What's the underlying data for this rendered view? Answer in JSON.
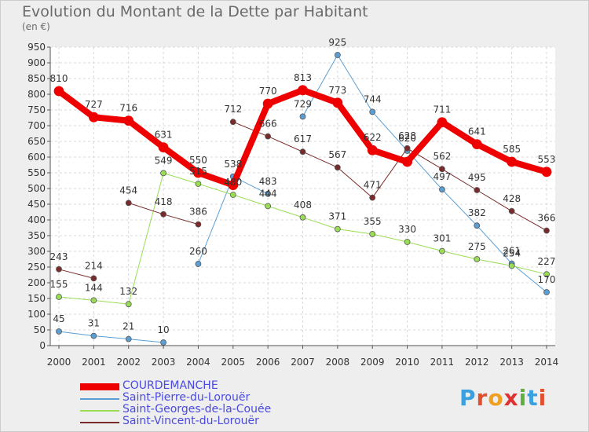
{
  "title": "Evolution du Montant de la Dette par Habitant",
  "unit": "(en €)",
  "logo": {
    "text": "Proxiti",
    "letters": [
      "P",
      "r",
      "o",
      "x",
      "i",
      "t",
      "i"
    ],
    "colors": [
      "#3aa0e0",
      "#e05030",
      "#f0a020",
      "#e03030",
      "#60b040",
      "#3aa0e0",
      "#e05030"
    ]
  },
  "chart_data": {
    "type": "line",
    "title": "Evolution du Montant de la Dette par Habitant",
    "ylabel": "(en €)",
    "x": [
      "2000",
      "2001",
      "2002",
      "2003",
      "2004",
      "2005",
      "2006",
      "2007",
      "2008",
      "2009",
      "2010",
      "2011",
      "2012",
      "2013",
      "2014"
    ],
    "ylim": [
      0,
      950
    ],
    "yticks": [
      0,
      50,
      100,
      150,
      200,
      250,
      300,
      350,
      400,
      450,
      500,
      550,
      600,
      650,
      700,
      750,
      800,
      850,
      900,
      950
    ],
    "grid": true,
    "legend_position": "bottom-left",
    "series": [
      {
        "name": "COURDEMANCHE",
        "color": "#ee0000",
        "width": 8,
        "values": [
          810,
          727,
          716,
          631,
          550,
          511,
          770,
          813,
          773,
          622,
          585,
          711,
          641,
          585,
          553
        ],
        "labels": [
          "810",
          "727",
          "716",
          "631",
          "550",
          "",
          "770",
          "813",
          "773",
          "622",
          "",
          "711",
          "641",
          "585",
          "553"
        ]
      },
      {
        "name": "Saint-Pierre-du-Lorouër",
        "color": "#5a9fd4",
        "width": 1,
        "segments": [
          [
            0,
            3
          ],
          [
            4,
            6
          ],
          [
            7,
            14
          ]
        ],
        "values": [
          45,
          31,
          21,
          10,
          260,
          538,
          483,
          729,
          925,
          744,
          620,
          497,
          382,
          261,
          170
        ],
        "labels": [
          "45",
          "31",
          "21",
          "10",
          "260",
          "538",
          "483",
          "729",
          "925",
          "744",
          "620",
          "497",
          "382",
          "261",
          "170"
        ]
      },
      {
        "name": "Saint-Georges-de-la-Couée",
        "color": "#99dd55",
        "width": 1,
        "segments": [
          [
            0,
            14
          ]
        ],
        "values": [
          155,
          144,
          132,
          549,
          515,
          480,
          444,
          408,
          371,
          355,
          330,
          301,
          275,
          254,
          227
        ],
        "labels": [
          "155",
          "144",
          "132",
          "549",
          "515",
          "480",
          "444",
          "408",
          "371",
          "355",
          "330",
          "301",
          "275",
          "254",
          "227"
        ]
      },
      {
        "name": "Saint-Vincent-du-Lorouër",
        "color": "#7a2a2a",
        "width": 1,
        "segments": [
          [
            0,
            1
          ],
          [
            2,
            4
          ],
          [
            5,
            14
          ]
        ],
        "values": [
          243,
          214,
          454,
          418,
          386,
          712,
          666,
          617,
          567,
          471,
          628,
          562,
          495,
          428,
          366
        ],
        "labels": [
          "243",
          "214",
          "454",
          "418",
          "386",
          "712",
          "666",
          "617",
          "567",
          "471",
          "628",
          "562",
          "495",
          "428",
          "366"
        ]
      }
    ]
  }
}
